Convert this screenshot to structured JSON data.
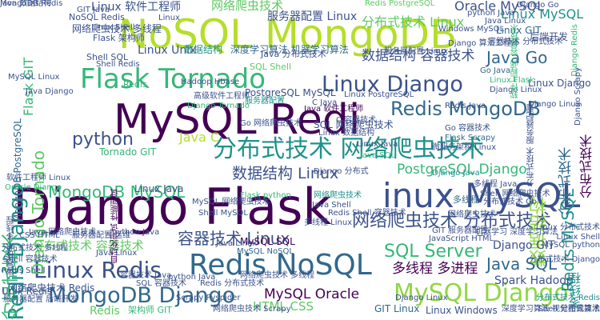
{
  "palette": {
    "dark_purple": "#440154",
    "indigo": "#3b528b",
    "blue": "#31688e",
    "teal": "#21918c",
    "sea_green": "#35b779",
    "green": "#5ec962",
    "lime": "#90d743",
    "yellow_green": "#b5de2b"
  },
  "words": [
    {
      "text": "Django Flask",
      "color": "#440154"
    },
    {
      "text": "MySQL Redi",
      "color": "#440154"
    },
    {
      "text": "NoSQL MongoDB",
      "color": "#b5de2b"
    },
    {
      "text": "inux MySQL",
      "color": "#3b528b"
    },
    {
      "text": "Redis NoSQL",
      "color": "#31688e"
    },
    {
      "text": "分布式技术 网络爬虫技术",
      "color": "#21918c"
    },
    {
      "text": "Flask Tornado",
      "color": "#35b779"
    },
    {
      "text": "MySQL Django",
      "color": "#90d743"
    },
    {
      "text": "网络爬虫技术 分布式技术",
      "color": "#3b528b"
    },
    {
      "text": "Linux Django",
      "color": "#3b528b"
    },
    {
      "text": "Linux Redis",
      "color": "#3b528b"
    },
    {
      "text": "Redis MongoDB",
      "color": "#31688e"
    },
    {
      "text": "MongoDB Django",
      "color": "#31688e"
    },
    {
      "text": "Redis Django",
      "color": "#21918c"
    },
    {
      "text": "数据结构",
      "color": "#90d743"
    },
    {
      "text": "分布式技术",
      "color": "#35b779"
    },
    {
      "text": "SQL Server",
      "color": "#35b779"
    },
    {
      "text": "MongoDB MySQL",
      "color": "#35b779"
    },
    {
      "text": "Java Go",
      "color": "#31688e"
    },
    {
      "text": "python",
      "color": "#3b528b"
    },
    {
      "text": "容器技术 Linux",
      "color": "#3b528b"
    },
    {
      "text": "数据结构 Linux",
      "color": "#3b528b"
    },
    {
      "text": "数据结构 容器技术",
      "color": "#3b528b"
    },
    {
      "text": "PostgreSQL Django",
      "color": "#35b779"
    },
    {
      "text": "MySQL Oracle",
      "color": "#440154"
    },
    {
      "text": "分布式技术 容器技术",
      "color": "#5ec962"
    },
    {
      "text": "Java SQL",
      "color": "#31688e"
    },
    {
      "text": "多线程 多进程",
      "color": "#440154"
    },
    {
      "text": "Linux MySQL",
      "color": "#21918c"
    },
    {
      "text": "Oracle MySQL",
      "color": "#3b528b"
    },
    {
      "text": "网络爬虫技术",
      "color": "#5ec962"
    },
    {
      "text": "分布式技术 Linux",
      "color": "#5ec962"
    },
    {
      "text": "Redis MySQL",
      "color": "#21918c"
    },
    {
      "text": "分布式技术",
      "color": "#31688e"
    },
    {
      "text": "Django Tornado",
      "color": "#5ec962"
    },
    {
      "text": "HTML CSS",
      "color": "#5ec962"
    },
    {
      "text": "Linux Unix",
      "color": "#3b528b"
    },
    {
      "text": "Java C",
      "color": "#b5de2b"
    },
    {
      "text": "Spark Hadoop",
      "color": "#3b528b"
    },
    {
      "text": "Django GIT",
      "color": "#3b528b"
    },
    {
      "text": "Linux 软件工程师",
      "color": "#3b528b"
    },
    {
      "text": "服务器配置 Linux",
      "color": "#3b528b"
    },
    {
      "text": "Linux GIT",
      "color": "#31688e"
    },
    {
      "text": "后端开发",
      "color": "#3b528b"
    },
    {
      "text": "Flask GIT",
      "color": "#35b779"
    },
    {
      "text": "Redis",
      "color": "#5ec962"
    },
    {
      "text": "MySQL SQL",
      "color": "#440154"
    },
    {
      "text": "多线程",
      "color": "#21918c"
    },
    {
      "text": "分布式技术",
      "color": "#440154"
    },
    {
      "text": "网络爬虫技术 Redis",
      "color": "#3b528b"
    },
    {
      "text": "Linux Windows",
      "color": "#3b528b"
    },
    {
      "text": "GIT Linux",
      "color": "#31688e"
    },
    {
      "text": "Tornado GIT",
      "color": "#35b779"
    },
    {
      "text": "SQL 网络爬虫技术",
      "color": "#3b528b"
    },
    {
      "text": "MongoDB PostgreSQL",
      "color": "#31688e"
    },
    {
      "text": "PostgreSQL MySQL",
      "color": "#3b528b"
    },
    {
      "text": "网络爬虫技术 多线程",
      "color": "#3b528b"
    },
    {
      "text": "Flask 架构师",
      "color": "#3b528b"
    },
    {
      "text": "Shell SQL",
      "color": "#3b528b"
    },
    {
      "text": "NoSQL Redis",
      "color": "#3b528b"
    },
    {
      "text": "SQL Shell",
      "color": "#5ec962"
    },
    {
      "text": "深度学习算法 机器学习算法",
      "color": "#31688e"
    },
    {
      "text": "Linux Java",
      "color": "#3b528b"
    },
    {
      "text": "Java 分布式技术",
      "color": "#3b528b"
    },
    {
      "text": "Django Linux",
      "color": "#3b528b"
    },
    {
      "text": "容器技术 分布式技术",
      "color": "#3b528b"
    },
    {
      "text": "软件工程师 容器技术",
      "color": "#35b779"
    },
    {
      "text": "数据结构",
      "color": "#21918c"
    },
    {
      "text": "Linux Django",
      "color": "#3b528b"
    },
    {
      "text": "多线程",
      "color": "#31688e"
    },
    {
      "text": "Django Linux",
      "color": "#3b528b"
    },
    {
      "text": "服务器配置 后端开发",
      "color": "#3b528b"
    },
    {
      "text": "Unix Redis",
      "color": "#3b528b"
    },
    {
      "text": "架构师 GIT",
      "color": "#35b779"
    },
    {
      "text": "网络爬虫技术 Scrapy",
      "color": "#3b528b"
    },
    {
      "text": "深度学习算法 视觉图像算法",
      "color": "#3b528b"
    },
    {
      "text": "Shell 分布式技术",
      "color": "#3b528b"
    },
    {
      "text": "Scrapy Pyspider",
      "color": "#3b528b"
    },
    {
      "text": "自动化测试 性能测试",
      "color": "#440154"
    },
    {
      "text": "Redis Shell 容器技术",
      "color": "#3b528b"
    },
    {
      "text": "Flask python",
      "color": "#35b779"
    },
    {
      "text": "MySQL NoSQL",
      "color": "#31688e"
    },
    {
      "text": "python Java",
      "color": "#3b528b"
    },
    {
      "text": "网络爬虫技术",
      "color": "#21918c"
    },
    {
      "text": "Java Shell",
      "color": "#3b528b"
    },
    {
      "text": "多线程 Linux",
      "color": "#3b528b"
    },
    {
      "text": "Linux PostgreSQL",
      "color": "#3b528b"
    },
    {
      "text": "C Java",
      "color": "#3b528b"
    },
    {
      "text": "Go 容器技术",
      "color": "#3b528b"
    },
    {
      "text": "Flask Scrapy",
      "color": "#31688e"
    },
    {
      "text": "微服务架构 Linux",
      "color": "#3b528b"
    },
    {
      "text": "Django Java",
      "color": "#21918c"
    },
    {
      "text": "Java SQL",
      "color": "#35b779"
    },
    {
      "text": "Django Redis",
      "color": "#35b779"
    },
    {
      "text": "Redis PostgreSQL",
      "color": "#5ec962"
    },
    {
      "text": "Linux",
      "color": "#3b528b"
    },
    {
      "text": "GIT Java",
      "color": "#3b528b"
    },
    {
      "text": "Windows MySQL",
      "color": "#3b528b"
    },
    {
      "text": "Django Go",
      "color": "#3b528b"
    },
    {
      "text": "Go Java",
      "color": "#31688e"
    },
    {
      "text": "Java Linux",
      "color": "#3b528b"
    },
    {
      "text": "python Java",
      "color": "#3b528b"
    },
    {
      "text": "Django 算法工程师",
      "color": "#3b528b"
    },
    {
      "text": "Linux Flask",
      "color": "#35b779"
    },
    {
      "text": "Django Linux",
      "color": "#3b528b"
    },
    {
      "text": "Linux Shell",
      "color": "#3b528b"
    },
    {
      "text": "Shell Redis",
      "color": "#3b528b"
    },
    {
      "text": "Hadoop Hbase",
      "color": "#3b528b"
    },
    {
      "text": "Redis",
      "color": "#35b779"
    },
    {
      "text": "Django Tornado",
      "color": "#35b779"
    },
    {
      "text": "Java 软件工程师",
      "color": "#440154"
    },
    {
      "text": "高级软件工程师",
      "color": "#3b528b"
    },
    {
      "text": "服务器配置",
      "color": "#21918c"
    },
    {
      "text": "Go 网络爬虫技术",
      "color": "#3b528b"
    },
    {
      "text": "Django 分布式",
      "color": "#3b528b"
    },
    {
      "text": "Linux 数据结构",
      "color": "#3b528b"
    },
    {
      "text": "C 容器技术",
      "color": "#3b528b"
    },
    {
      "text": "Linux Java",
      "color": "#3b528b"
    },
    {
      "text": "Shell MySQL",
      "color": "#3b528b"
    },
    {
      "text": "MySQL 网络爬虫技术",
      "color": "#3b528b"
    },
    {
      "text": "网络爬虫技术 多线程",
      "color": "#3b528b"
    },
    {
      "text": "Java Linux",
      "color": "#3b528b"
    },
    {
      "text": "Redis 分布式技术",
      "color": "#3b528b"
    },
    {
      "text": "容器技术 Java",
      "color": "#3b528b"
    },
    {
      "text": "SQL 容器技术",
      "color": "#3b528b"
    },
    {
      "text": "Java Linux",
      "color": "#3b528b"
    },
    {
      "text": "python Java",
      "color": "#3b528b"
    },
    {
      "text": "GIT 服务器配置",
      "color": "#3b528b"
    },
    {
      "text": "JavaScript HTML",
      "color": "#3b528b"
    },
    {
      "text": "分布式技术 Go",
      "color": "#3b528b"
    },
    {
      "text": "Shell 网络爬虫技术",
      "color": "#3b528b"
    },
    {
      "text": "网络爬虫技术",
      "color": "#3b528b"
    },
    {
      "text": "Linux 分布式技术",
      "color": "#3b528b"
    },
    {
      "text": "Linux Shell",
      "color": "#3b528b"
    },
    {
      "text": "多线程 Java",
      "color": "#3b528b"
    },
    {
      "text": "MySQL python",
      "color": "#3b528b"
    },
    {
      "text": "分布式技术 Django",
      "color": "#3b528b"
    },
    {
      "text": "分布式技术 Redis",
      "color": "#21918c"
    },
    {
      "text": "分布式技术 多线程",
      "color": "#3b528b"
    },
    {
      "text": "Shell 容器技术",
      "color": "#3b528b"
    },
    {
      "text": "Redis Shell",
      "color": "#3b528b"
    },
    {
      "text": "容器技术 多线程",
      "color": "#3b528b"
    },
    {
      "text": "Oracle Django",
      "color": "#35b779"
    },
    {
      "text": "软件工程师 Linux",
      "color": "#3b528b"
    },
    {
      "text": "CSS HTML",
      "color": "#3b528b"
    },
    {
      "text": "Java 网络爬虫技术",
      "color": "#3b528b"
    },
    {
      "text": "服务器配置 运维",
      "color": "#3b528b"
    },
    {
      "text": "机器学习 深度学习算法",
      "color": "#3b528b"
    },
    {
      "text": "分布式技术 服务器配置",
      "color": "#3b528b"
    },
    {
      "text": "Django Scrapy",
      "color": "#3b528b"
    },
    {
      "text": "Redis Java",
      "color": "#3b528b"
    },
    {
      "text": "服务器配置 Linux",
      "color": "#3b528b"
    },
    {
      "text": "MySQL Linux",
      "color": "#3b528b"
    },
    {
      "text": "Java Django",
      "color": "#3b528b"
    },
    {
      "text": "MongoDB Redis",
      "color": "#3b528b"
    },
    {
      "text": "Java 数据结构",
      "color": "#3b528b"
    }
  ]
}
